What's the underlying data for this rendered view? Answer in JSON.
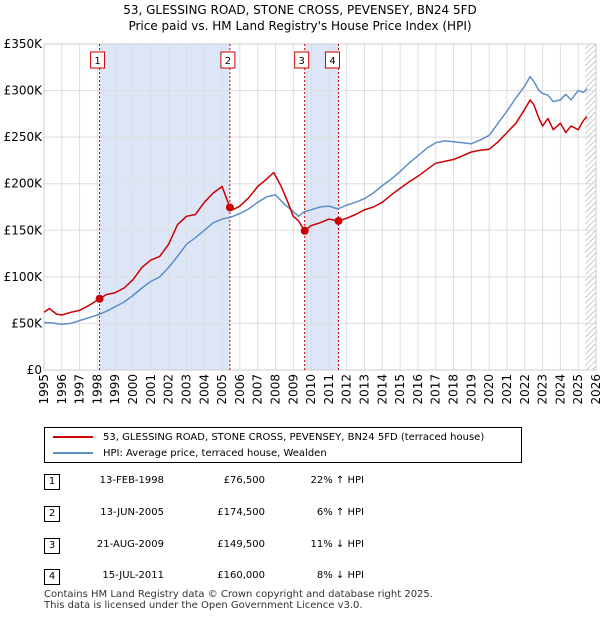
{
  "chart_data": {
    "type": "line",
    "title": "53, GLESSING ROAD, STONE CROSS, PEVENSEY, BN24 5FD",
    "subtitle": "Price paid vs. HM Land Registry's House Price Index (HPI)",
    "xlim": [
      1995,
      2026
    ],
    "ylim": [
      0,
      350000
    ],
    "y_ticks": [
      0,
      50000,
      100000,
      150000,
      200000,
      250000,
      300000,
      350000
    ],
    "y_tick_labels": [
      "£0",
      "£50K",
      "£100K",
      "£150K",
      "£200K",
      "£250K",
      "£300K",
      "£350K"
    ],
    "x_ticks": [
      1995,
      1996,
      1997,
      1998,
      1999,
      2000,
      2001,
      2002,
      2003,
      2004,
      2005,
      2006,
      2007,
      2008,
      2009,
      2010,
      2011,
      2012,
      2013,
      2014,
      2015,
      2016,
      2017,
      2018,
      2019,
      2020,
      2021,
      2022,
      2023,
      2024,
      2025,
      2026
    ],
    "x_tick_labels": [
      "1995",
      "1996",
      "1997",
      "1998",
      "1999",
      "2000",
      "2001",
      "2002",
      "2003",
      "2004",
      "2005",
      "2006",
      "2007",
      "2008",
      "2009",
      "2010",
      "2011",
      "2012",
      "2013",
      "2014",
      "2015",
      "2016",
      "2017",
      "2018",
      "2019",
      "2020",
      "2021",
      "2022",
      "2023",
      "2024",
      "2025",
      "2026"
    ],
    "grid": true,
    "series": [
      {
        "name": "53, GLESSING ROAD, STONE CROSS, PEVENSEY, BN24 5FD (terraced house)",
        "color": "#cc0000",
        "x": [
          1995.0,
          1995.3,
          1995.7,
          1996.0,
          1996.5,
          1997.0,
          1997.5,
          1998.12,
          1998.5,
          1999.0,
          1999.5,
          2000.0,
          2000.5,
          2001.0,
          2001.5,
          2002.0,
          2002.5,
          2003.0,
          2003.5,
          2004.0,
          2004.5,
          2005.0,
          2005.44,
          2005.6,
          2006.0,
          2006.5,
          2007.0,
          2007.5,
          2007.9,
          2008.3,
          2008.7,
          2009.0,
          2009.3,
          2009.64,
          2010.0,
          2010.5,
          2011.0,
          2011.54,
          2012.0,
          2012.5,
          2013.0,
          2013.5,
          2014.0,
          2014.5,
          2015.0,
          2015.5,
          2016.0,
          2016.5,
          2017.0,
          2017.5,
          2018.0,
          2018.5,
          2019.0,
          2019.5,
          2020.0,
          2020.5,
          2021.0,
          2021.5,
          2022.0,
          2022.3,
          2022.5,
          2022.8,
          2023.0,
          2023.3,
          2023.6,
          2024.0,
          2024.3,
          2024.6,
          2025.0,
          2025.3,
          2025.5
        ],
        "values": [
          62000,
          66000,
          60000,
          59000,
          62000,
          64000,
          69000,
          76500,
          81000,
          83000,
          88000,
          97000,
          110000,
          118000,
          122000,
          135000,
          156000,
          165000,
          167000,
          180000,
          190000,
          197000,
          174500,
          172000,
          176000,
          185000,
          197000,
          205000,
          212000,
          198000,
          180000,
          165000,
          160000,
          149500,
          155000,
          158000,
          162000,
          160000,
          163000,
          167000,
          172000,
          175000,
          180000,
          188000,
          195000,
          202000,
          208000,
          215000,
          222000,
          224000,
          226000,
          230000,
          234000,
          236000,
          237000,
          245000,
          255000,
          265000,
          280000,
          290000,
          285000,
          270000,
          262000,
          270000,
          258000,
          265000,
          255000,
          262000,
          258000,
          268000,
          272000
        ]
      },
      {
        "name": "HPI: Average price, terraced house, Wealden",
        "color": "#5b8fc9",
        "x": [
          1995.0,
          1995.5,
          1996.0,
          1996.5,
          1997.0,
          1997.5,
          1998.0,
          1998.5,
          1999.0,
          1999.5,
          2000.0,
          2000.5,
          2001.0,
          2001.5,
          2002.0,
          2002.5,
          2003.0,
          2003.5,
          2004.0,
          2004.5,
          2005.0,
          2005.5,
          2006.0,
          2006.5,
          2007.0,
          2007.5,
          2008.0,
          2008.5,
          2009.0,
          2009.3,
          2009.6,
          2010.0,
          2010.5,
          2011.0,
          2011.5,
          2012.0,
          2012.5,
          2013.0,
          2013.5,
          2014.0,
          2014.5,
          2015.0,
          2015.5,
          2016.0,
          2016.5,
          2017.0,
          2017.5,
          2018.0,
          2018.5,
          2019.0,
          2019.5,
          2020.0,
          2020.5,
          2021.0,
          2021.5,
          2022.0,
          2022.3,
          2022.5,
          2022.8,
          2023.0,
          2023.3,
          2023.6,
          2024.0,
          2024.3,
          2024.6,
          2025.0,
          2025.3,
          2025.5
        ],
        "values": [
          51000,
          50500,
          49000,
          50000,
          53000,
          56000,
          59000,
          63000,
          68000,
          73000,
          80000,
          88000,
          95000,
          100000,
          110000,
          122000,
          135000,
          142000,
          150000,
          158000,
          162000,
          164000,
          168000,
          173000,
          180000,
          186000,
          188000,
          178000,
          170000,
          165000,
          170000,
          172000,
          175000,
          176000,
          173000,
          177000,
          180000,
          184000,
          190000,
          198000,
          205000,
          213000,
          222000,
          230000,
          238000,
          244000,
          246000,
          245000,
          244000,
          243000,
          247000,
          252000,
          265000,
          278000,
          292000,
          305000,
          315000,
          310000,
          300000,
          297000,
          295000,
          288000,
          290000,
          296000,
          290000,
          300000,
          298000,
          302000
        ]
      }
    ],
    "sale_markers": [
      {
        "label": "1",
        "x": 1998.12,
        "value": 76500
      },
      {
        "label": "2",
        "x": 2005.44,
        "value": 174500
      },
      {
        "label": "3",
        "x": 2009.64,
        "value": 149500
      },
      {
        "label": "4",
        "x": 2011.54,
        "value": 160000
      }
    ],
    "shaded_ranges": [
      [
        1998.12,
        2005.44
      ],
      [
        2009.64,
        2011.54
      ]
    ],
    "hatched_from": 2025.4
  },
  "legend": [
    {
      "label": "53, GLESSING ROAD, STONE CROSS, PEVENSEY, BN24 5FD (terraced house)",
      "color": "#cc0000"
    },
    {
      "label": "HPI: Average price, terraced house, Wealden",
      "color": "#5b8fc9"
    }
  ],
  "transactions": [
    {
      "num": "1",
      "date": "13-FEB-1998",
      "price": "£76,500",
      "hpi": "22% ↑ HPI"
    },
    {
      "num": "2",
      "date": "13-JUN-2005",
      "price": "£174,500",
      "hpi": "6% ↑ HPI"
    },
    {
      "num": "3",
      "date": "21-AUG-2009",
      "price": "£149,500",
      "hpi": "11% ↓ HPI"
    },
    {
      "num": "4",
      "date": "15-JUL-2011",
      "price": "£160,000",
      "hpi": "8% ↓ HPI"
    }
  ],
  "footer": {
    "line1": "Contains HM Land Registry data © Crown copyright and database right 2025.",
    "line2": "This data is licensed under the Open Government Licence v3.0."
  }
}
